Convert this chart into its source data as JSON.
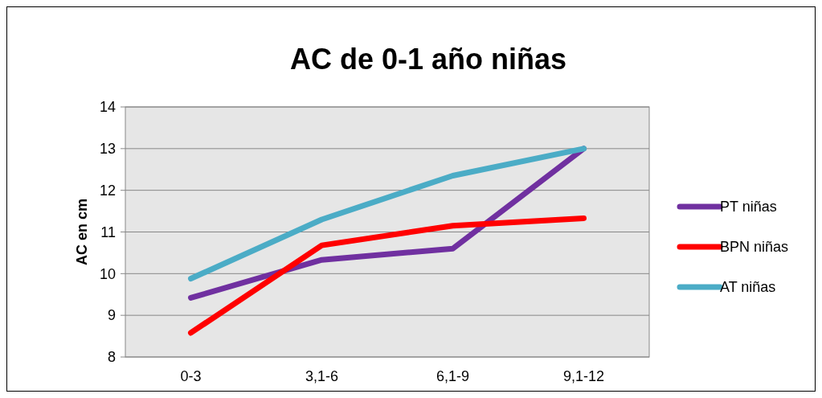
{
  "chart_data": {
    "type": "line",
    "title": "AC de 0-1 año niñas",
    "ylabel": "AC en cm",
    "categories": [
      "0-3",
      "3,1-6",
      "6,1-9",
      "9,1-12"
    ],
    "series": [
      {
        "name": "PT niñas",
        "color": "#7030a0",
        "values": [
          9.42,
          10.33,
          10.6,
          13.0
        ]
      },
      {
        "name": "BPN niñas",
        "color": "#ff0000",
        "values": [
          8.58,
          10.68,
          11.15,
          11.33
        ]
      },
      {
        "name": "AT niñas",
        "color": "#4bacc6",
        "values": [
          9.88,
          11.3,
          12.35,
          13.0
        ]
      }
    ],
    "ylim": [
      8,
      14
    ],
    "yticks": [
      8,
      9,
      10,
      11,
      12,
      13,
      14
    ],
    "grid": "y",
    "legend": "right",
    "marker": "none",
    "line_style": "solid"
  }
}
